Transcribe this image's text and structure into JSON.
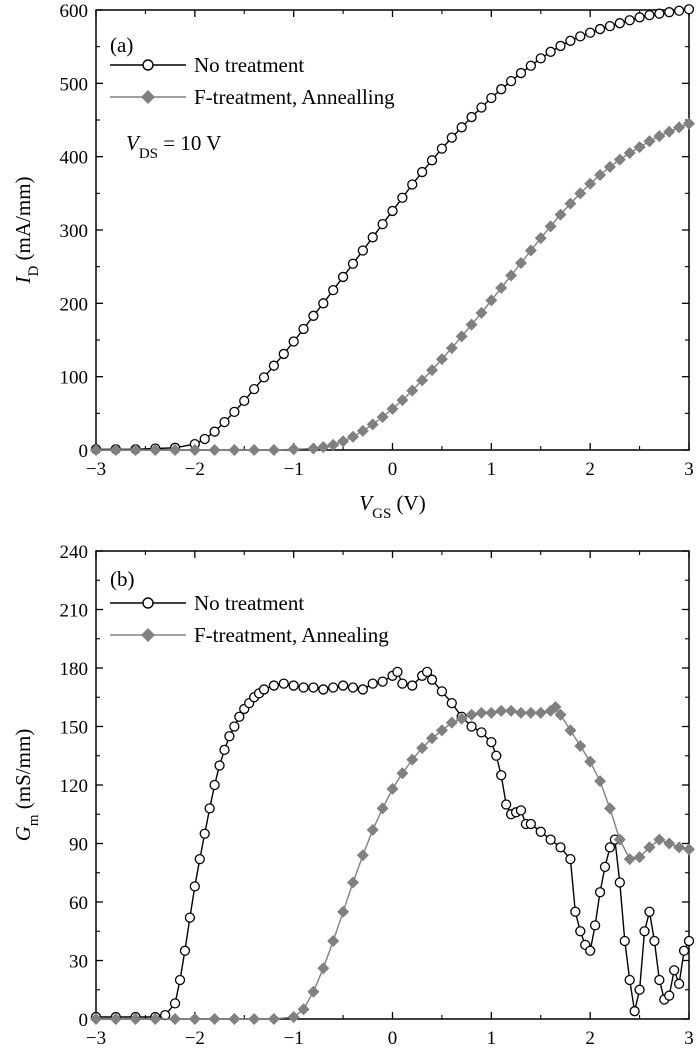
{
  "chart_data": [
    {
      "type": "scatter",
      "panel_label": "(a)",
      "xlabel": "V",
      "xlabel_sub": "GS",
      "xlabel_unit": " (V)",
      "ylabel": "I",
      "ylabel_sub": "D",
      "ylabel_unit": " (mA/mm)",
      "xlim": [
        -3,
        3
      ],
      "ylim": [
        0,
        600
      ],
      "xticks": [
        -3,
        -2,
        -1,
        0,
        1,
        2,
        3
      ],
      "yticks": [
        0,
        100,
        200,
        300,
        400,
        500,
        600
      ],
      "annotation": {
        "main": "V",
        "sub": "DS",
        "rest": " = 10 V"
      },
      "legend_position": "top-left",
      "series": [
        {
          "name": "No treatment",
          "marker": "open-circle",
          "color": "#000000",
          "x": [
            -3.0,
            -2.8,
            -2.6,
            -2.4,
            -2.2,
            -2.0,
            -1.9,
            -1.8,
            -1.7,
            -1.6,
            -1.5,
            -1.4,
            -1.3,
            -1.2,
            -1.1,
            -1.0,
            -0.9,
            -0.8,
            -0.7,
            -0.6,
            -0.5,
            -0.4,
            -0.3,
            -0.2,
            -0.1,
            0.0,
            0.1,
            0.2,
            0.3,
            0.4,
            0.5,
            0.6,
            0.7,
            0.8,
            0.9,
            1.0,
            1.1,
            1.2,
            1.3,
            1.4,
            1.5,
            1.6,
            1.7,
            1.8,
            1.9,
            2.0,
            2.1,
            2.2,
            2.3,
            2.4,
            2.5,
            2.6,
            2.7,
            2.8,
            2.9,
            3.0
          ],
          "y": [
            1,
            1,
            1,
            2,
            3,
            8,
            15,
            25,
            38,
            52,
            67,
            83,
            99,
            115,
            131,
            148,
            165,
            183,
            200,
            218,
            236,
            254,
            272,
            290,
            308,
            326,
            344,
            362,
            379,
            395,
            411,
            426,
            440,
            454,
            467,
            480,
            492,
            503,
            514,
            524,
            534,
            543,
            551,
            558,
            564,
            569,
            574,
            578,
            582,
            586,
            590,
            593,
            595,
            597,
            599,
            601
          ]
        },
        {
          "name": "F-treatment, Annealling",
          "marker": "filled-diamond",
          "color": "#808080",
          "x": [
            -3.0,
            -2.8,
            -2.6,
            -2.4,
            -2.2,
            -2.0,
            -1.8,
            -1.6,
            -1.4,
            -1.2,
            -1.0,
            -0.8,
            -0.7,
            -0.6,
            -0.5,
            -0.4,
            -0.3,
            -0.2,
            -0.1,
            0.0,
            0.1,
            0.2,
            0.3,
            0.4,
            0.5,
            0.6,
            0.7,
            0.8,
            0.9,
            1.0,
            1.1,
            1.2,
            1.3,
            1.4,
            1.5,
            1.6,
            1.7,
            1.8,
            1.9,
            2.0,
            2.1,
            2.2,
            2.3,
            2.4,
            2.5,
            2.6,
            2.7,
            2.8,
            2.9,
            3.0
          ],
          "y": [
            0,
            0,
            0,
            0,
            0,
            0,
            0,
            0,
            0,
            0,
            1,
            2,
            4,
            7,
            12,
            18,
            26,
            35,
            45,
            56,
            68,
            81,
            95,
            109,
            124,
            139,
            155,
            171,
            187,
            204,
            221,
            238,
            255,
            272,
            289,
            305,
            321,
            336,
            350,
            363,
            375,
            386,
            396,
            405,
            413,
            421,
            428,
            434,
            440,
            445
          ]
        }
      ]
    },
    {
      "type": "scatter",
      "panel_label": "(b)",
      "xlabel": "V",
      "xlabel_sub": "GS",
      "xlabel_unit": " (V)",
      "ylabel": "G",
      "ylabel_sub": "m",
      "ylabel_unit": " (mS/mm)",
      "xlim": [
        -3,
        3
      ],
      "ylim": [
        0,
        240
      ],
      "xticks": [
        -3,
        -2,
        -1,
        0,
        1,
        2,
        3
      ],
      "yticks": [
        0,
        30,
        60,
        90,
        120,
        150,
        180,
        210,
        240
      ],
      "legend_position": "top-left",
      "series": [
        {
          "name": "No treatment",
          "marker": "open-circle",
          "color": "#000000",
          "x": [
            -3.0,
            -2.8,
            -2.6,
            -2.4,
            -2.3,
            -2.2,
            -2.15,
            -2.1,
            -2.05,
            -2.0,
            -1.95,
            -1.9,
            -1.85,
            -1.8,
            -1.75,
            -1.7,
            -1.65,
            -1.6,
            -1.55,
            -1.5,
            -1.45,
            -1.4,
            -1.35,
            -1.3,
            -1.2,
            -1.1,
            -1.0,
            -0.9,
            -0.8,
            -0.7,
            -0.6,
            -0.5,
            -0.4,
            -0.3,
            -0.2,
            -0.1,
            0.0,
            0.05,
            0.1,
            0.2,
            0.3,
            0.35,
            0.4,
            0.5,
            0.6,
            0.7,
            0.8,
            0.9,
            1.0,
            1.05,
            1.1,
            1.15,
            1.2,
            1.25,
            1.3,
            1.35,
            1.4,
            1.5,
            1.6,
            1.7,
            1.8,
            1.85,
            1.9,
            1.95,
            2.0,
            2.05,
            2.1,
            2.15,
            2.2,
            2.25,
            2.3,
            2.35,
            2.4,
            2.45,
            2.5,
            2.55,
            2.6,
            2.65,
            2.7,
            2.75,
            2.8,
            2.85,
            2.9,
            2.95,
            3.0
          ],
          "y": [
            1,
            1,
            1,
            1,
            2,
            8,
            20,
            35,
            52,
            68,
            82,
            95,
            108,
            120,
            130,
            138,
            145,
            150,
            155,
            159,
            162,
            165,
            167,
            169,
            171,
            172,
            171,
            170,
            170,
            169,
            170,
            171,
            170,
            169,
            172,
            173,
            176,
            178,
            172,
            171,
            176,
            178,
            174,
            168,
            162,
            155,
            150,
            147,
            142,
            135,
            125,
            110,
            105,
            106,
            107,
            100,
            100,
            96,
            92,
            88,
            82,
            55,
            45,
            38,
            35,
            48,
            65,
            78,
            88,
            92,
            70,
            40,
            20,
            4,
            15,
            45,
            55,
            40,
            20,
            10,
            12,
            25,
            18,
            35,
            40
          ]
        },
        {
          "name": "F-treatment, Annealing",
          "marker": "filled-diamond",
          "color": "#808080",
          "x": [
            -3.0,
            -2.8,
            -2.6,
            -2.4,
            -2.2,
            -2.0,
            -1.8,
            -1.6,
            -1.4,
            -1.2,
            -1.0,
            -0.9,
            -0.8,
            -0.7,
            -0.6,
            -0.5,
            -0.4,
            -0.3,
            -0.2,
            -0.1,
            0.0,
            0.1,
            0.2,
            0.3,
            0.4,
            0.5,
            0.6,
            0.7,
            0.8,
            0.9,
            1.0,
            1.1,
            1.2,
            1.3,
            1.4,
            1.5,
            1.6,
            1.65,
            1.7,
            1.8,
            1.9,
            2.0,
            2.1,
            2.2,
            2.3,
            2.4,
            2.5,
            2.6,
            2.7,
            2.8,
            2.9,
            3.0
          ],
          "y": [
            0,
            0,
            0,
            0,
            0,
            0,
            0,
            0,
            0,
            0,
            1,
            5,
            14,
            26,
            40,
            55,
            70,
            84,
            97,
            108,
            118,
            126,
            133,
            139,
            144,
            148,
            152,
            154,
            156,
            157,
            157,
            158,
            158,
            157,
            157,
            157,
            158,
            160,
            156,
            148,
            140,
            132,
            122,
            108,
            92,
            82,
            83,
            88,
            92,
            90,
            88,
            87
          ]
        }
      ]
    }
  ]
}
